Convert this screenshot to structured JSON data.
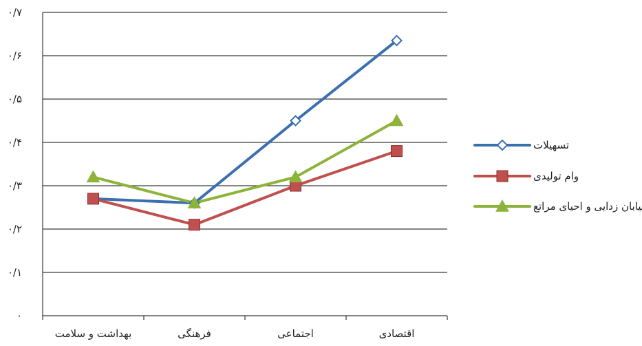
{
  "chart_data": {
    "type": "line",
    "categories": [
      "بهداشت و سلامت",
      "فرهنگی",
      "اجتماعی",
      "اقتصادی"
    ],
    "series": [
      {
        "name": "تسهیلات",
        "values": [
          0.27,
          0.26,
          0.45,
          0.635
        ],
        "color": "#3b6fb0",
        "marker": "diamond-icon"
      },
      {
        "name": "وام تولیدی",
        "values": [
          0.27,
          0.21,
          0.3,
          0.38
        ],
        "color": "#c0504d",
        "marker": "square-icon"
      },
      {
        "name": "بیابان زدایی و احیای مراتع",
        "values": [
          0.32,
          0.26,
          0.32,
          0.45
        ],
        "color": "#8db33a",
        "marker": "triangle-icon"
      }
    ],
    "ylim": [
      0,
      0.7
    ],
    "yticks": [
      0,
      0.1,
      0.2,
      0.3,
      0.4,
      0.5,
      0.6,
      0.7
    ],
    "ytick_labels": [
      "۰",
      "۰/۱",
      "۰/۲",
      "۰/۳",
      "۰/۴",
      "۰/۵",
      "۰/۶",
      "۰/۷"
    ],
    "grid": true,
    "legend_position": "right"
  }
}
